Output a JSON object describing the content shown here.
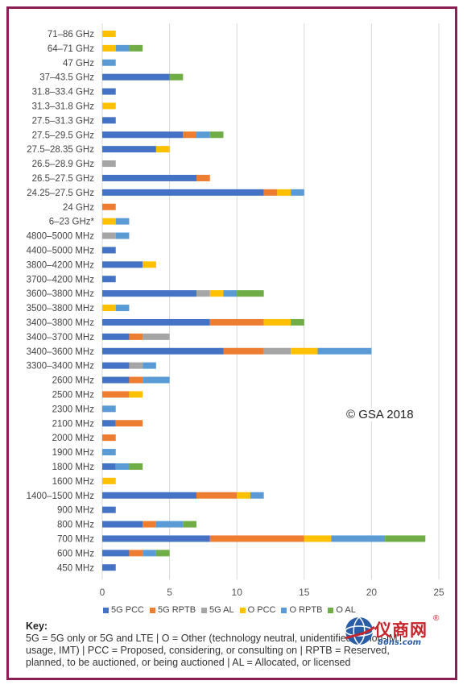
{
  "chart_data": {
    "type": "bar",
    "orientation": "horizontal",
    "stacked": true,
    "title": "",
    "xlabel": "",
    "ylabel": "",
    "xlim": [
      0,
      25
    ],
    "x_ticks": [
      0,
      5,
      10,
      15,
      20,
      25
    ],
    "grid": "vertical",
    "legend_position": "bottom",
    "categories": [
      "71–86 GHz",
      "64–71 GHz",
      "47 GHz",
      "37–43.5 GHz",
      "31.8–33.4 GHz",
      "31.3–31.8 GHz",
      "27.5–31.3 GHz",
      "27.5–29.5 GHz",
      "27.5–28.35 GHz",
      "26.5–28.9 GHz",
      "26.5–27.5 GHz",
      "24.25–27.5 GHz",
      "24 GHz",
      "6–23 GHz*",
      "4800–5000 MHz",
      "4400–5000 MHz",
      "3800–4200 MHz",
      "3700–4200 MHz",
      "3600–3800 MHz",
      "3500–3800 MHz",
      "3400–3800 MHz",
      "3400–3700 MHz",
      "3400–3600 MHz",
      "3300–3400 MHz",
      "2600 MHz",
      "2500 MHz",
      "2300 MHz",
      "2100 MHz",
      "2000 MHz",
      "1900 MHz",
      "1800 MHz",
      "1600 MHz",
      "1400–1500 MHz",
      "900 MHz",
      "800 MHz",
      "700 MHz",
      "600 MHz",
      "450 MHz"
    ],
    "series": [
      {
        "name": "5G PCC",
        "color": "#4472c4",
        "values": [
          0,
          0,
          0,
          5,
          1,
          0,
          1,
          6,
          4,
          0,
          7,
          12,
          0,
          0,
          0,
          1,
          3,
          1,
          7,
          0,
          8,
          2,
          9,
          2,
          2,
          0,
          0,
          1,
          0,
          0,
          1,
          0,
          7,
          1,
          3,
          8,
          2,
          1
        ]
      },
      {
        "name": "5G RPTB",
        "color": "#ed7d31",
        "values": [
          0,
          0,
          0,
          0,
          0,
          0,
          0,
          1,
          0,
          0,
          1,
          1,
          1,
          0,
          0,
          0,
          0,
          0,
          0,
          0,
          4,
          1,
          3,
          0,
          1,
          2,
          0,
          2,
          1,
          0,
          0,
          0,
          3,
          0,
          1,
          7,
          1,
          0
        ]
      },
      {
        "name": "5G AL",
        "color": "#a5a5a5",
        "values": [
          0,
          0,
          0,
          0,
          0,
          0,
          0,
          0,
          0,
          1,
          0,
          0,
          0,
          0,
          1,
          0,
          0,
          0,
          1,
          0,
          0,
          2,
          2,
          1,
          0,
          0,
          0,
          0,
          0,
          0,
          0,
          0,
          0,
          0,
          0,
          0,
          0,
          0
        ]
      },
      {
        "name": "O PCC",
        "color": "#ffc000",
        "values": [
          1,
          1,
          0,
          0,
          0,
          1,
          0,
          0,
          1,
          0,
          0,
          1,
          0,
          1,
          0,
          0,
          1,
          0,
          1,
          1,
          2,
          0,
          2,
          0,
          0,
          1,
          0,
          0,
          0,
          0,
          0,
          1,
          1,
          0,
          0,
          2,
          0,
          0
        ]
      },
      {
        "name": "O RPTB",
        "color": "#5b9bd5",
        "values": [
          0,
          1,
          1,
          0,
          0,
          0,
          0,
          1,
          0,
          0,
          0,
          1,
          0,
          1,
          1,
          0,
          0,
          0,
          1,
          1,
          0,
          0,
          4,
          1,
          2,
          0,
          1,
          0,
          0,
          1,
          1,
          0,
          1,
          0,
          2,
          4,
          1,
          0
        ]
      },
      {
        "name": "O AL",
        "color": "#70ad47",
        "values": [
          0,
          1,
          0,
          1,
          0,
          0,
          0,
          1,
          0,
          0,
          0,
          0,
          0,
          0,
          0,
          0,
          0,
          0,
          2,
          0,
          1,
          0,
          0,
          0,
          0,
          0,
          0,
          0,
          0,
          0,
          1,
          0,
          0,
          0,
          1,
          3,
          1,
          0
        ]
      }
    ]
  },
  "annotations": {
    "copyright": "© GSA 2018"
  },
  "key": {
    "title": "Key:",
    "text": "5G = 5G only or 5G and LTE | O = Other (technology neutral, unidentified or non-IMT usage, IMT) | PCC = Proposed, considering, or consulting on | RPTB = Reserved, planned, to be auctioned, or being auctioned | AL = Allocated, or licensed"
  },
  "watermark": {
    "brand": "仪商网",
    "registered": "®",
    "url": "86ns.com"
  }
}
